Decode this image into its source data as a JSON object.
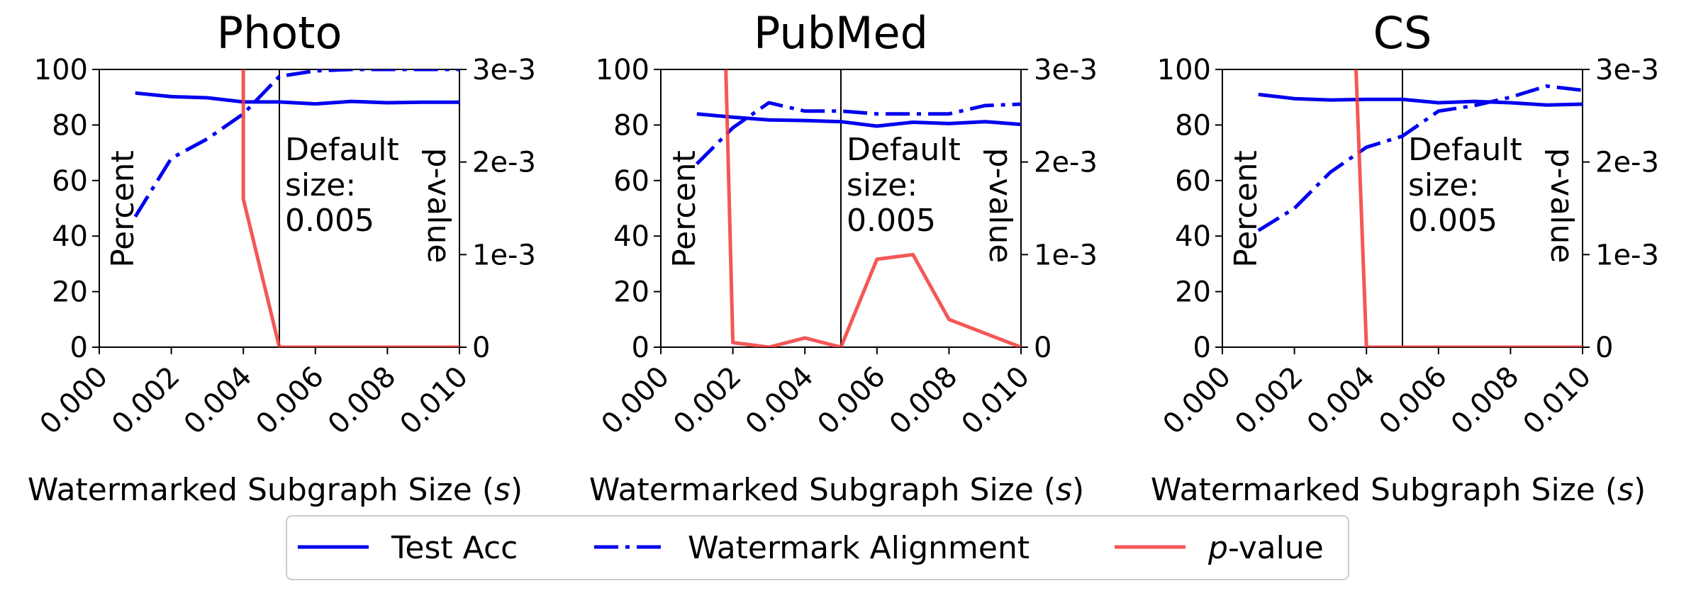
{
  "chart_data": [
    {
      "type": "line",
      "title": "Photo",
      "xlabel": "Watermarked Subgraph Size (s)",
      "ylabel_left": "Percent",
      "ylabel_right": "p-value",
      "xlim": [
        0,
        0.01
      ],
      "ylim_left": [
        0,
        100
      ],
      "ylim_right": [
        0,
        0.003
      ],
      "xticks": [
        "0.000",
        "0.002",
        "0.004",
        "0.006",
        "0.008",
        "0.010"
      ],
      "yticks_left": [
        "0",
        "20",
        "40",
        "60",
        "80",
        "100"
      ],
      "yticks_right": [
        "0",
        "1e-3",
        "2e-3",
        "3e-3"
      ],
      "annotation": {
        "x": 0.005,
        "text": [
          "Default",
          "size:",
          "0.005"
        ]
      },
      "series": [
        {
          "name": "Test Acc",
          "axis": "left",
          "style": "solid",
          "color": "#0000ee",
          "x": [
            0.001,
            0.002,
            0.003,
            0.004,
            0.005,
            0.006,
            0.007,
            0.008,
            0.009,
            0.01
          ],
          "values": [
            91.5,
            90.2,
            89.8,
            88.3,
            88.3,
            87.6,
            88.5,
            88.0,
            88.2,
            88.2
          ]
        },
        {
          "name": "Watermark Alignment",
          "axis": "left",
          "style": "dashdot",
          "color": "#0000ee",
          "x": [
            0.001,
            0.002,
            0.003,
            0.004,
            0.005,
            0.006,
            0.007,
            0.008,
            0.009,
            0.01
          ],
          "values": [
            47,
            68,
            75,
            84,
            97.5,
            99.5,
            100,
            100,
            100,
            100
          ]
        },
        {
          "name": "p-value",
          "axis": "right",
          "style": "solid",
          "color": "#f23a3a",
          "x": [
            0.004,
            0.004,
            0.005,
            0.006,
            0.007,
            0.008,
            0.009,
            0.01
          ],
          "values": [
            0.0031,
            0.0016,
            0.0,
            0.0,
            0.0,
            0.0,
            0.0,
            0.0
          ]
        }
      ]
    },
    {
      "type": "line",
      "title": "PubMed",
      "xlabel": "Watermarked Subgraph Size (s)",
      "ylabel_left": "Percent",
      "ylabel_right": "p-value",
      "xlim": [
        0,
        0.01
      ],
      "ylim_left": [
        0,
        100
      ],
      "ylim_right": [
        0,
        0.003
      ],
      "xticks": [
        "0.000",
        "0.002",
        "0.004",
        "0.006",
        "0.008",
        "0.010"
      ],
      "yticks_left": [
        "0",
        "20",
        "40",
        "60",
        "80",
        "100"
      ],
      "yticks_right": [
        "0",
        "1e-3",
        "2e-3",
        "3e-3"
      ],
      "annotation": {
        "x": 0.005,
        "text": [
          "Default",
          "size:",
          "0.005"
        ]
      },
      "series": [
        {
          "name": "Test Acc",
          "axis": "left",
          "style": "solid",
          "color": "#0000ee",
          "x": [
            0.001,
            0.002,
            0.003,
            0.004,
            0.005,
            0.006,
            0.007,
            0.008,
            0.009,
            0.01
          ],
          "values": [
            84,
            82.8,
            81.8,
            81.6,
            81.2,
            79.6,
            81.0,
            80.5,
            81.2,
            80.2
          ]
        },
        {
          "name": "Watermark Alignment",
          "axis": "left",
          "style": "dashdot",
          "color": "#0000ee",
          "x": [
            0.001,
            0.002,
            0.003,
            0.004,
            0.005,
            0.006,
            0.007,
            0.008,
            0.009,
            0.01
          ],
          "values": [
            66,
            79,
            88,
            85,
            85,
            84,
            84,
            84,
            87,
            87.5
          ]
        },
        {
          "name": "p-value",
          "axis": "right",
          "style": "solid",
          "color": "#f23a3a",
          "x": [
            0.0018,
            0.002,
            0.003,
            0.004,
            0.005,
            0.006,
            0.007,
            0.008,
            0.009,
            0.01
          ],
          "values": [
            0.0031,
            5e-05,
            0.0,
            0.0001,
            0.0,
            0.00095,
            0.001,
            0.0003,
            0.00015,
            0.0
          ]
        }
      ]
    },
    {
      "type": "line",
      "title": "CS",
      "xlabel": "Watermarked Subgraph Size (s)",
      "ylabel_left": "Percent",
      "ylabel_right": "p-value",
      "xlim": [
        0,
        0.01
      ],
      "ylim_left": [
        0,
        100
      ],
      "ylim_right": [
        0,
        0.003
      ],
      "xticks": [
        "0.000",
        "0.002",
        "0.004",
        "0.006",
        "0.008",
        "0.010"
      ],
      "yticks_left": [
        "0",
        "20",
        "40",
        "60",
        "80",
        "100"
      ],
      "yticks_right": [
        "0",
        "1e-3",
        "2e-3",
        "3e-3"
      ],
      "annotation": {
        "x": 0.005,
        "text": [
          "Default",
          "size:",
          "0.005"
        ]
      },
      "series": [
        {
          "name": "Test Acc",
          "axis": "left",
          "style": "solid",
          "color": "#0000ee",
          "x": [
            0.001,
            0.002,
            0.003,
            0.004,
            0.005,
            0.006,
            0.007,
            0.008,
            0.009,
            0.01
          ],
          "values": [
            91,
            89.5,
            89,
            89.2,
            89.2,
            88.0,
            88.5,
            88.0,
            87.2,
            87.5
          ]
        },
        {
          "name": "Watermark Alignment",
          "axis": "left",
          "style": "dashdot",
          "color": "#0000ee",
          "x": [
            0.001,
            0.002,
            0.003,
            0.004,
            0.005,
            0.006,
            0.007,
            0.008,
            0.009,
            0.01
          ],
          "values": [
            42,
            50,
            63,
            72,
            76,
            85,
            87,
            90,
            94,
            92.5
          ]
        },
        {
          "name": "p-value",
          "axis": "right",
          "style": "solid",
          "color": "#f23a3a",
          "x": [
            0.0037,
            0.004,
            0.005,
            0.006,
            0.007,
            0.008,
            0.009,
            0.01
          ],
          "values": [
            0.0031,
            0.0,
            0.0,
            0.0,
            0.0,
            0.0,
            0.0,
            0.0
          ]
        }
      ]
    }
  ],
  "legend": {
    "placement": "bottom-center",
    "items": [
      {
        "label": "Test Acc",
        "style": "solid",
        "color": "#0000ee",
        "italic_prefix": ""
      },
      {
        "label": "Watermark Alignment",
        "style": "dashdot",
        "color": "#0000ee",
        "italic_prefix": ""
      },
      {
        "label": "-value",
        "style": "solid",
        "color": "#f23a3a",
        "italic_prefix": "p"
      }
    ]
  }
}
